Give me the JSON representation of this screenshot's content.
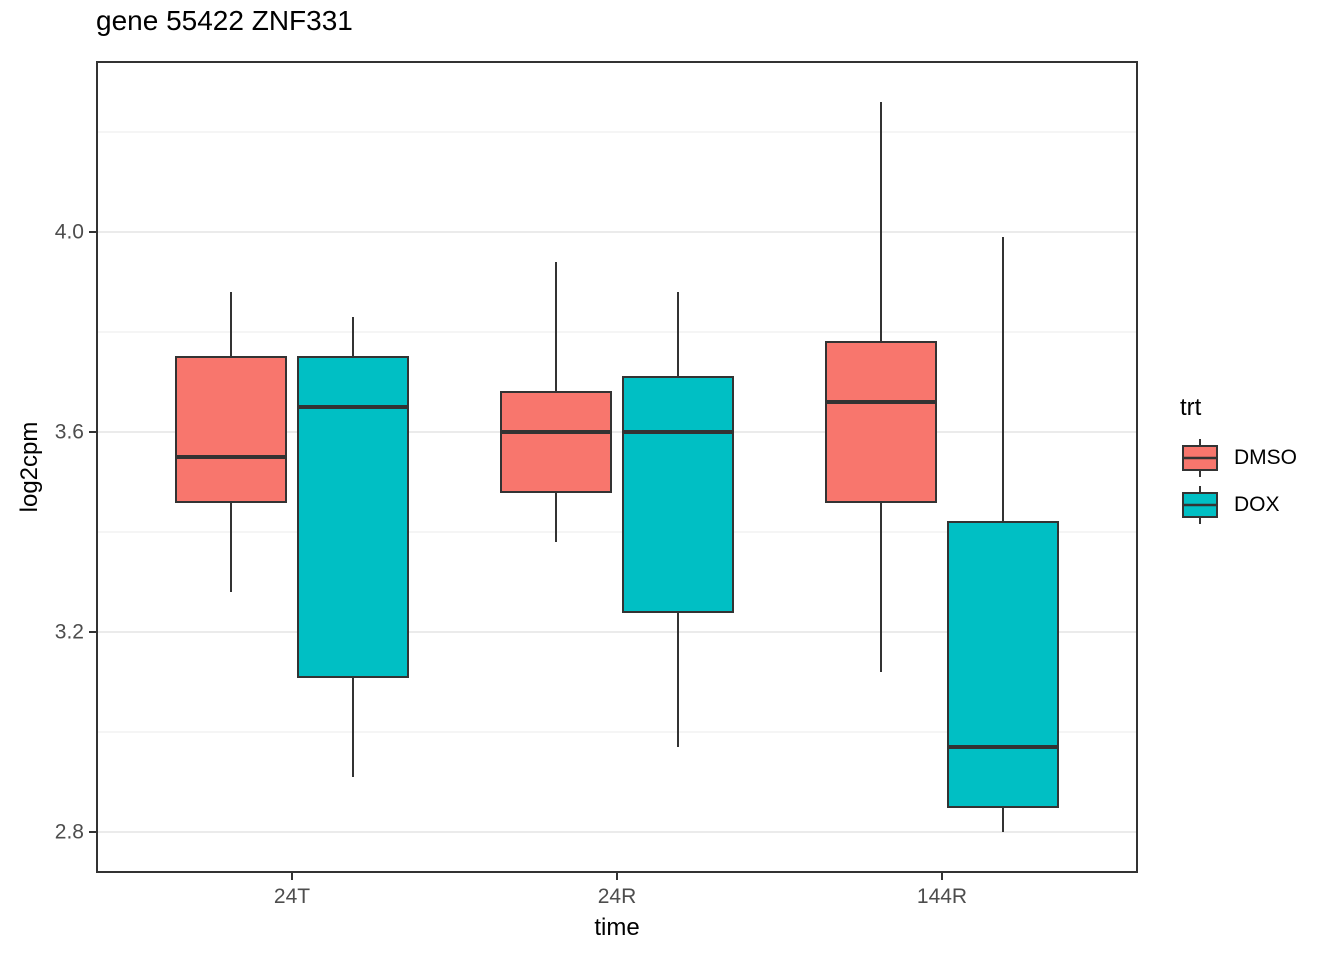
{
  "title": "gene 55422 ZNF331",
  "axes": {
    "x": {
      "label": "time",
      "categories": [
        "24T",
        "24R",
        "144R"
      ]
    },
    "y": {
      "label": "log2cpm",
      "major_tick_labels": [
        "4.0",
        "3.6",
        "3.2",
        "2.8"
      ]
    }
  },
  "legend": {
    "title": "trt",
    "position": "right",
    "entries": [
      {
        "label": "DMSO",
        "color": "#F8766D"
      },
      {
        "label": "DOX",
        "color": "#00BFC4"
      }
    ]
  },
  "colors": {
    "dmso_fill": "#F8766D",
    "dox_fill": "#00BFC4",
    "box_stroke": "#333333",
    "panel_border": "#333333",
    "gridline": "#EBEBEB",
    "tick_label": "#4D4D4D",
    "tick_mark": "#333333",
    "text": "#000000",
    "background": "#FFFFFF"
  },
  "chart_data": {
    "type": "boxplot",
    "title": "gene 55422 ZNF331",
    "xlabel": "time",
    "ylabel": "log2cpm",
    "categories": [
      "24T",
      "24R",
      "144R"
    ],
    "ylim": [
      2.72,
      4.34
    ],
    "y_major_ticks": [
      4.0,
      3.6,
      3.2,
      2.8
    ],
    "y_minor_ticks": [
      4.2,
      3.8,
      3.4,
      3.0
    ],
    "grid": true,
    "legend_position": "right",
    "series": [
      {
        "name": "DMSO",
        "color": "#F8766D",
        "boxes": [
          {
            "category": "24T",
            "whisker_low": 3.28,
            "q1": 3.46,
            "median": 3.55,
            "q3": 3.75,
            "whisker_high": 3.88
          },
          {
            "category": "24R",
            "whisker_low": 3.38,
            "q1": 3.48,
            "median": 3.6,
            "q3": 3.68,
            "whisker_high": 3.94
          },
          {
            "category": "144R",
            "whisker_low": 3.12,
            "q1": 3.46,
            "median": 3.66,
            "q3": 3.78,
            "whisker_high": 4.26
          }
        ]
      },
      {
        "name": "DOX",
        "color": "#00BFC4",
        "boxes": [
          {
            "category": "24T",
            "whisker_low": 2.91,
            "q1": 3.11,
            "median": 3.65,
            "q3": 3.75,
            "whisker_high": 3.83
          },
          {
            "category": "24R",
            "whisker_low": 2.97,
            "q1": 3.24,
            "median": 3.6,
            "q3": 3.71,
            "whisker_high": 3.88
          },
          {
            "category": "144R",
            "whisker_low": 2.8,
            "q1": 2.85,
            "median": 2.97,
            "q3": 3.42,
            "whisker_high": 3.99
          }
        ]
      }
    ]
  }
}
